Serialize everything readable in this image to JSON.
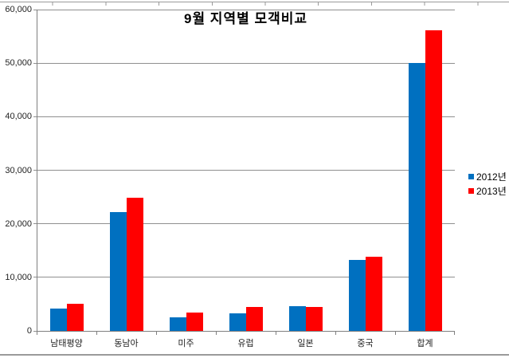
{
  "chart_data": {
    "type": "bar",
    "title": "9월 지역별 모객비교",
    "categories": [
      "남태평양",
      "동남아",
      "미주",
      "유럽",
      "일본",
      "중국",
      "합계"
    ],
    "series": [
      {
        "name": "2012년",
        "color": "#0070C0",
        "values": [
          4100,
          22250,
          2550,
          3300,
          4600,
          13250,
          50050
        ]
      },
      {
        "name": "2013년",
        "color": "#FF0000",
        "values": [
          5100,
          24900,
          3350,
          4500,
          4400,
          13900,
          56150
        ]
      }
    ],
    "y_axis": {
      "min": 0,
      "max": 60000,
      "step": 10000,
      "tick_labels": [
        "0",
        "10,000",
        "20,000",
        "30,000",
        "40,000",
        "50,000",
        "60,000"
      ]
    },
    "xlabel": "",
    "ylabel": "",
    "grid": true,
    "legend_position": "right"
  }
}
